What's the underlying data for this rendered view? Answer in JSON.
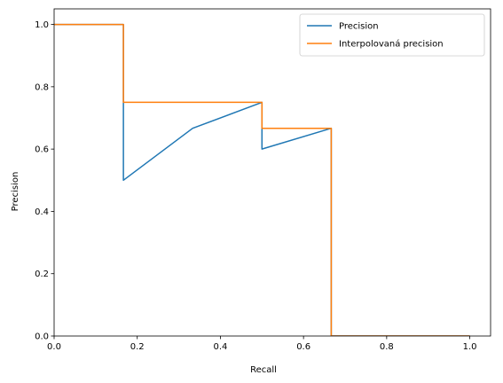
{
  "chart_data": {
    "type": "line",
    "title": "",
    "xlabel": "Recall",
    "ylabel": "Precision",
    "xlim": [
      0,
      1.05
    ],
    "ylim": [
      0,
      1.05
    ],
    "grid": false,
    "legend_position": "top-right",
    "xticks": [
      0.0,
      0.2,
      0.4,
      0.6,
      0.8,
      1.0
    ],
    "yticks": [
      0.0,
      0.2,
      0.4,
      0.6,
      0.8,
      1.0
    ],
    "xtick_labels": [
      "0.0",
      "0.2",
      "0.4",
      "0.6",
      "0.8",
      "1.0"
    ],
    "ytick_labels": [
      "0.0",
      "0.2",
      "0.4",
      "0.6",
      "0.8",
      "1.0"
    ],
    "series": [
      {
        "name": "Precision",
        "color": "#1f77b4",
        "x": [
          0.0,
          0.1667,
          0.1667,
          0.3333,
          0.5,
          0.5,
          0.6667,
          0.6667,
          1.0
        ],
        "y": [
          1.0,
          1.0,
          0.5,
          0.6667,
          0.75,
          0.6,
          0.6667,
          0.0,
          0.0
        ]
      },
      {
        "name": "Interpolovaná precision",
        "color": "#ff7f0e",
        "x": [
          0.0,
          0.1667,
          0.1667,
          0.5,
          0.5,
          0.6667,
          0.6667,
          1.0
        ],
        "y": [
          1.0,
          1.0,
          0.75,
          0.75,
          0.6667,
          0.6667,
          0.0,
          0.0
        ]
      }
    ]
  }
}
